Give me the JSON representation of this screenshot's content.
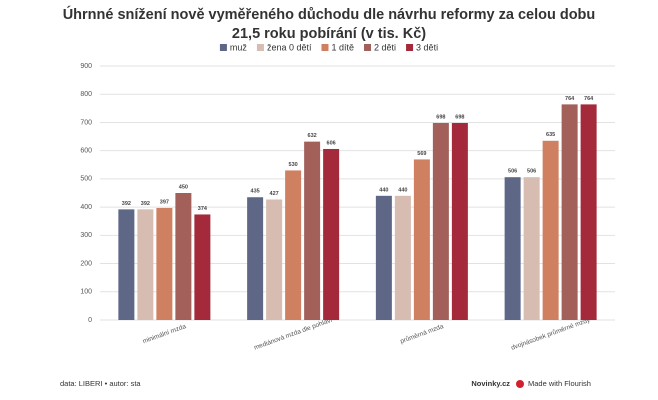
{
  "chart_data": {
    "type": "bar",
    "title": "Úhrnné snížení nově vyměřeného důchodu dle návrhu reformy za celou dobu 21,5 roku pobírání (v tis. Kč)",
    "categories": [
      "minimální mzda",
      "mediánová mzda dle pohlaví",
      "průměrná mzda",
      "dvojnásobek průměrné mzdy"
    ],
    "series": [
      {
        "name": "muž",
        "color": "#5e6886",
        "values": [
          392,
          435,
          440,
          506
        ]
      },
      {
        "name": "žena 0 dětí",
        "color": "#d6bcb1",
        "values": [
          392,
          427,
          440,
          506
        ]
      },
      {
        "name": "1 dítě",
        "color": "#cf8061",
        "values": [
          397,
          530,
          569,
          635
        ]
      },
      {
        "name": "2 děti",
        "color": "#a3605b",
        "values": [
          450,
          632,
          698,
          764
        ]
      },
      {
        "name": "3 děti",
        "color": "#a42a3b",
        "values": [
          374,
          606,
          698,
          764
        ]
      }
    ],
    "ylim": [
      0,
      900
    ],
    "yticks": [
      0,
      100,
      200,
      300,
      400,
      500,
      600,
      700,
      800,
      900
    ],
    "grid": true,
    "legend": "top",
    "footer": {
      "source": "data: LIBERI • autor: sta",
      "logo": "Novinky.cz",
      "credit": "Made with Flourish"
    }
  }
}
